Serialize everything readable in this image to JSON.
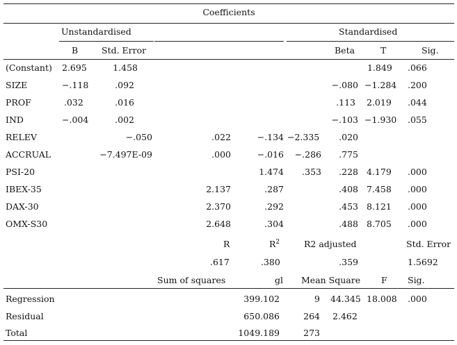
{
  "title": "Coefficients",
  "group_headers": {
    "unstandardised": "Unstandardised",
    "standardised": "Standardised"
  },
  "column_headers": {
    "b": "B",
    "std_error": "Std. Error",
    "beta": "Beta",
    "t": "T",
    "sig": "Sig."
  },
  "coef_rows": [
    {
      "label": "(Constant)",
      "b": "2.695",
      "se": "1.458",
      "t": "1.849",
      "sig": ".066"
    },
    {
      "label": "SIZE",
      "b": "-.118",
      "se": ".092",
      "beta": "-.080",
      "t": "-1.284",
      "sig": ".200"
    },
    {
      "label": "PROF",
      "b": ".032",
      "se": ".016",
      "beta": ".113",
      "t": "2.019",
      "sig": ".044"
    },
    {
      "label": "IND",
      "b": "-.004",
      "se": ".002",
      "beta": "-.103",
      "t": "-1.930",
      "sig": ".055"
    }
  ],
  "shifted_rows": [
    {
      "label": "RELEV",
      "v1": "-.050",
      "v2": ".022",
      "v3": "-.134",
      "v4": "-2.335",
      "v5": ".020"
    },
    {
      "label": "ACCRUAL",
      "v1": "-7.497E-09",
      "v2": ".000",
      "v3": "-.016",
      "v4": "-.286",
      "v5": ".775"
    }
  ],
  "psi_row": {
    "label": "PSI-20",
    "v1": "1.474",
    "v2": ".353",
    "v3": ".228",
    "v4": "4.179",
    "v5": ".000"
  },
  "index_rows": [
    {
      "label": "IBEX-35",
      "v1": "2.137",
      "v2": ".287",
      "v3": ".408",
      "v4": "7.458",
      "v5": ".000"
    },
    {
      "label": "DAX-30",
      "v1": "2.370",
      "v2": ".292",
      "v3": ".453",
      "v4": "8.121",
      "v5": ".000"
    },
    {
      "label": "OMX-S30",
      "v1": "2.648",
      "v2": ".304",
      "v3": ".488",
      "v4": "8.705",
      "v5": ".000"
    }
  ],
  "model_summary": {
    "headers": {
      "r": "R",
      "r2": "R",
      "r2_sup": "2",
      "r2_adj": "R2 adjusted",
      "std_error": "Std. Error"
    },
    "values": {
      "r": ".617",
      "r2": ".380",
      "r2_adj": ".359",
      "std_error": "1.5692"
    }
  },
  "anova": {
    "headers": {
      "ss": "Sum of squares",
      "gl": "gl",
      "ms": "Mean Square",
      "f": "F",
      "sig": "Sig."
    },
    "rows": [
      {
        "label": "Regression",
        "ss": "399.102",
        "gl": "9",
        "ms": "44.345",
        "f": "18.008",
        "sig": ".000"
      },
      {
        "label": "Residual",
        "ss": "650.086",
        "gl": "264",
        "ms": "2.462"
      },
      {
        "label": "Total",
        "ss": "1049.189",
        "gl": "273"
      }
    ]
  }
}
